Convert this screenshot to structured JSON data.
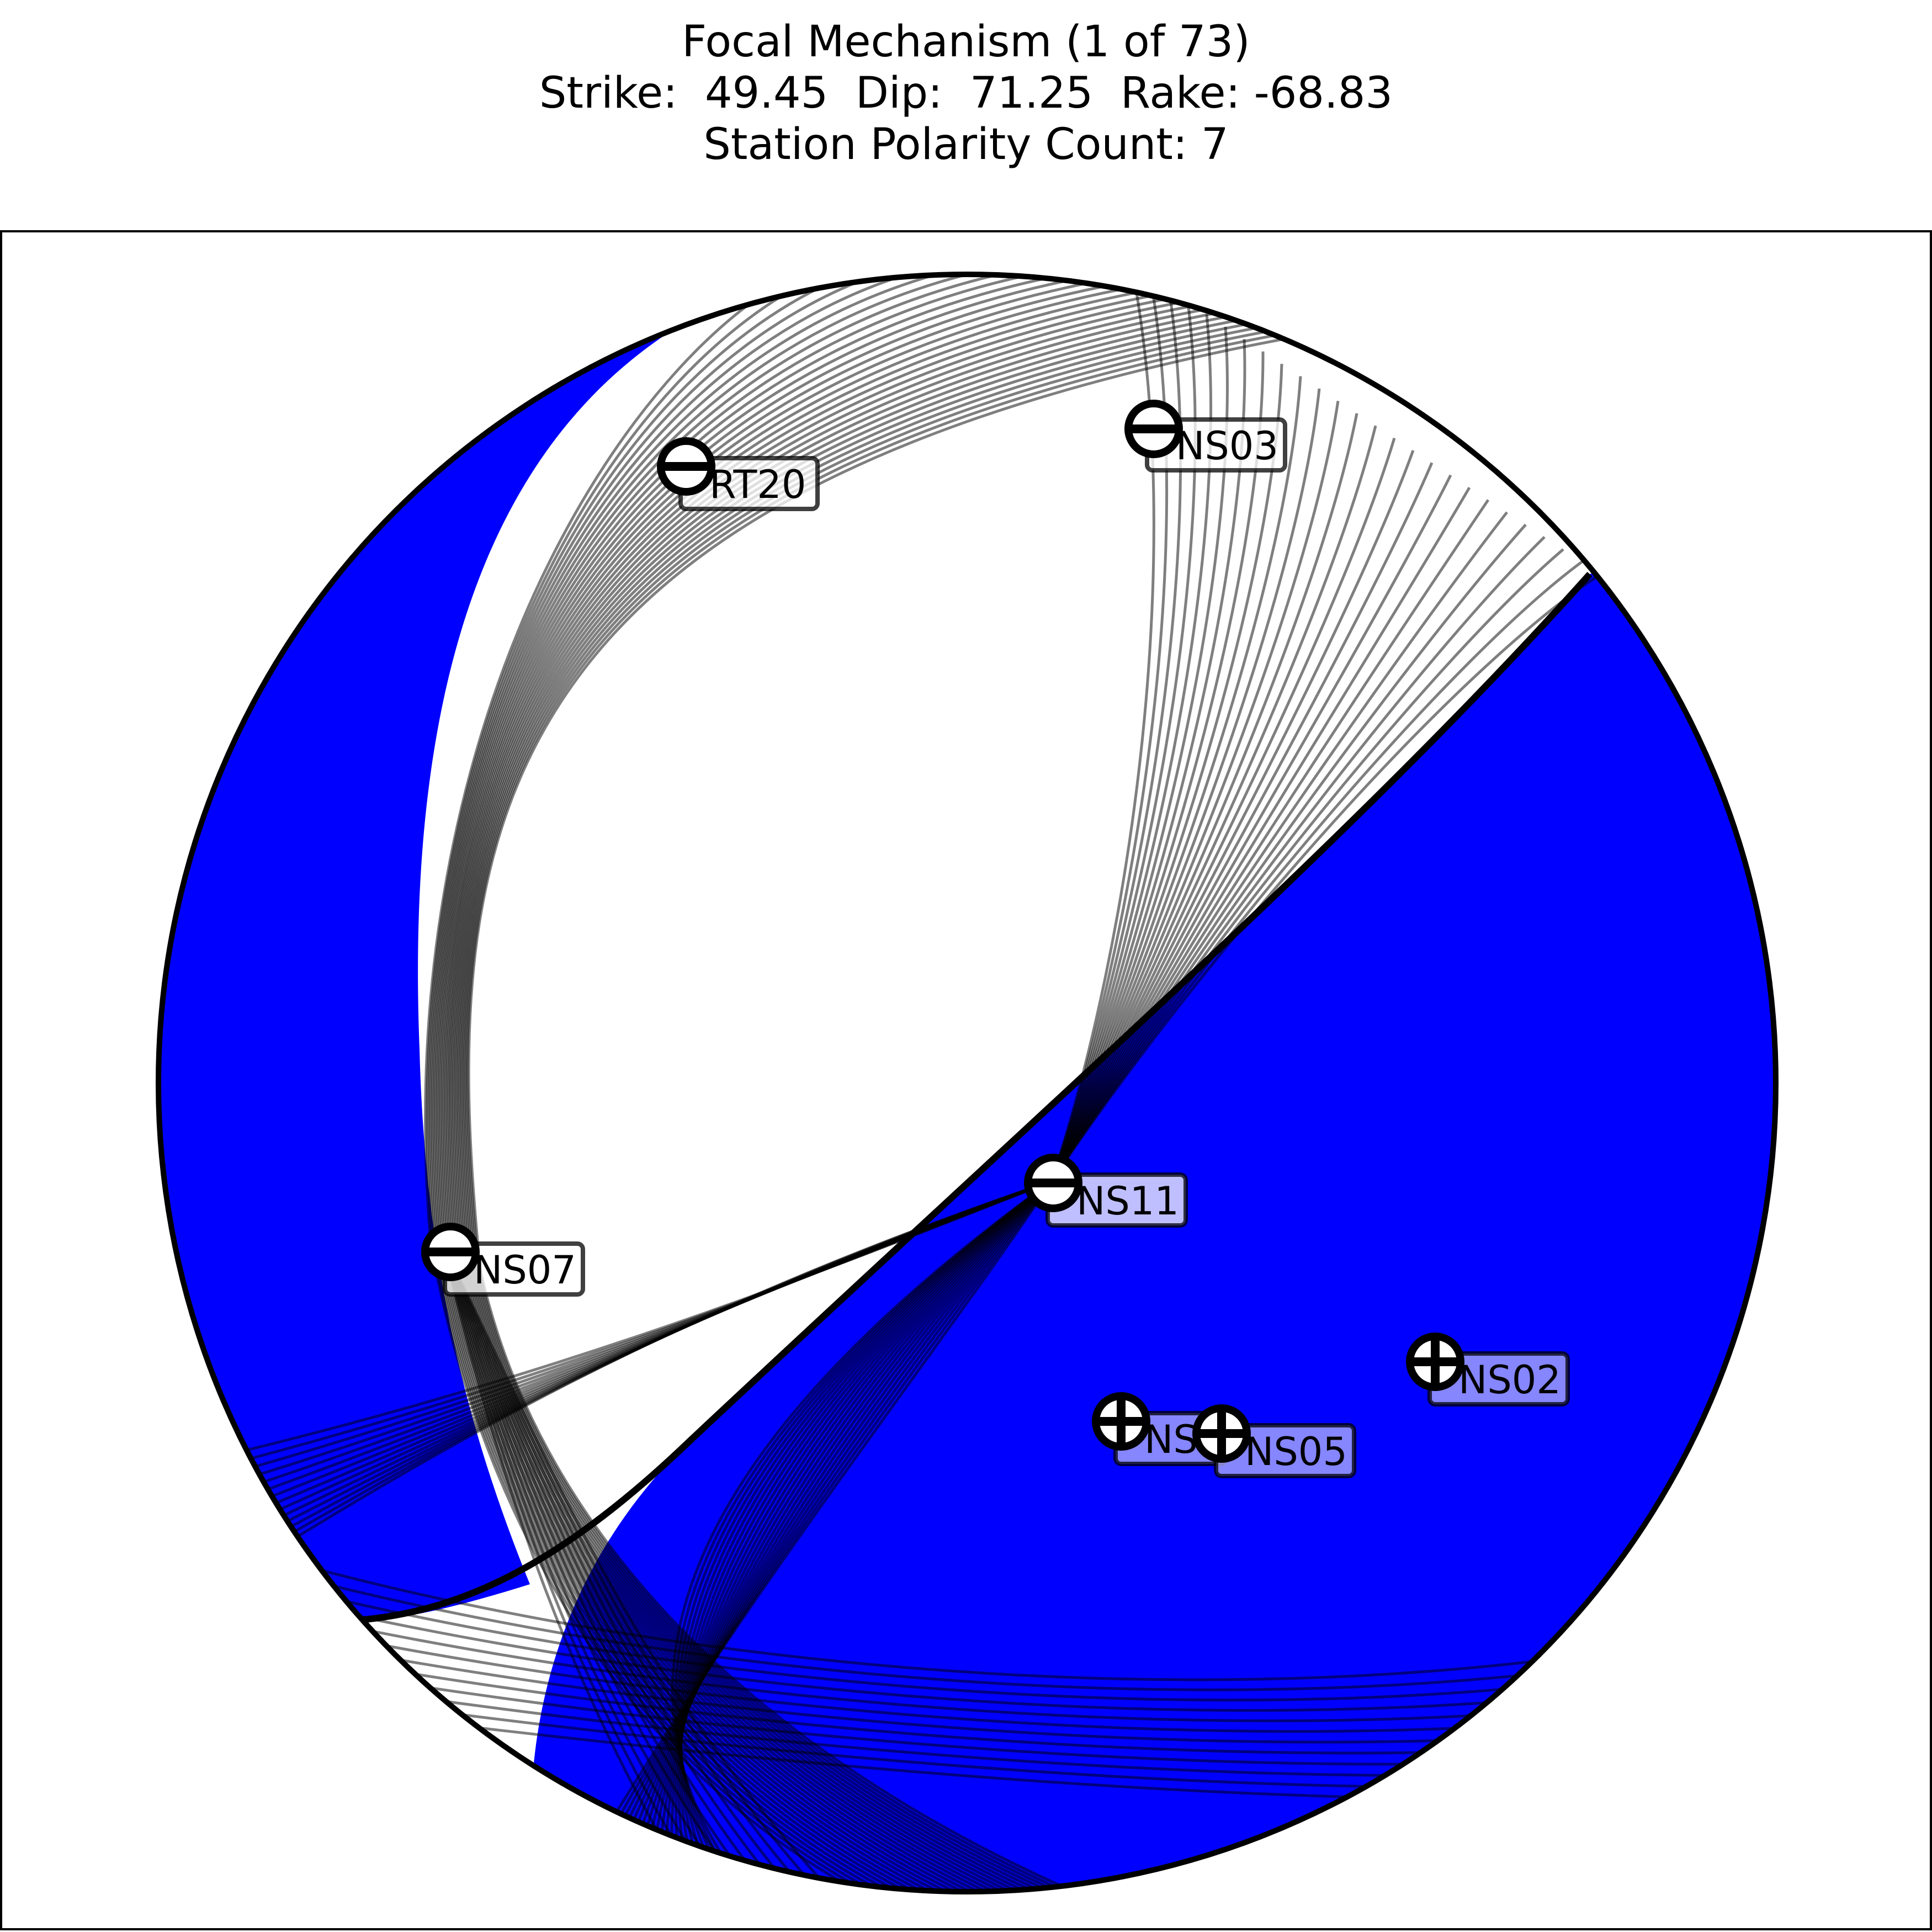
{
  "title": {
    "line1": "Focal Mechanism (1 of 73)",
    "line2": "Strike:  49.45  Dip:  71.25  Rake: -68.83",
    "line3": "Station Polarity Count: 7"
  },
  "mechanism": {
    "strike": 49.45,
    "dip": 71.25,
    "rake": -68.83,
    "solution_index": 1,
    "solution_total": 73
  },
  "colors": {
    "compressional_fill": "#0000ff",
    "dilatational_fill": "#ffffff",
    "nodal_line": "#000000",
    "label_box_compression": "#b3b3ff",
    "label_box_dilatation": "#ffffff"
  },
  "stations": [
    {
      "name": "RT20",
      "polarity": "-"
    },
    {
      "name": "NS03",
      "polarity": "-"
    },
    {
      "name": "NS11",
      "polarity": "-"
    },
    {
      "name": "NS07",
      "polarity": "-"
    },
    {
      "name": "NS02",
      "polarity": "+"
    },
    {
      "name": "NS",
      "polarity": "+"
    },
    {
      "name": "NS05",
      "polarity": "+"
    }
  ]
}
